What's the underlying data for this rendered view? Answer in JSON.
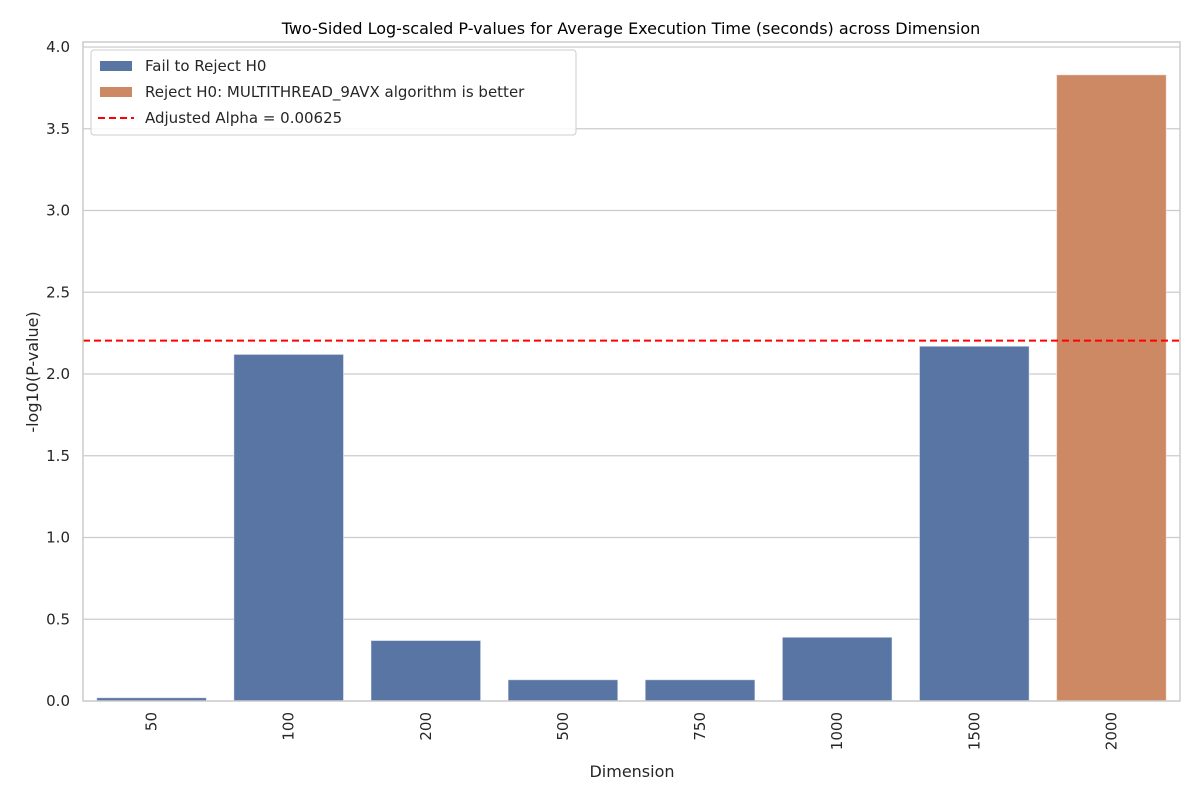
{
  "chart_data": {
    "type": "bar",
    "title": "Two-Sided Log-scaled P-values for Average Execution Time (seconds) across Dimension",
    "xlabel": "Dimension",
    "ylabel": "-log10(P-value)",
    "categories": [
      "50",
      "100",
      "200",
      "500",
      "750",
      "1000",
      "1500",
      "2000"
    ],
    "values": [
      0.02,
      2.12,
      0.37,
      0.13,
      0.13,
      0.39,
      2.17,
      3.83
    ],
    "groups": [
      "Fail to Reject H0",
      "Fail to Reject H0",
      "Fail to Reject H0",
      "Fail to Reject H0",
      "Fail to Reject H0",
      "Fail to Reject H0",
      "Fail to Reject H0",
      "Reject H0: MULTITHREAD_9AVX algorithm is better"
    ],
    "ylim": [
      0,
      4.0
    ],
    "yticks": [
      "0.0",
      "0.5",
      "1.0",
      "1.5",
      "2.0",
      "2.5",
      "3.0",
      "3.5",
      "4.0"
    ],
    "xtick_rotation": 90,
    "grid": "horizontal",
    "reference_line": {
      "label": "Adjusted Alpha = 0.00625",
      "value": 2.204,
      "style": "dashed",
      "color": "#e8000b"
    },
    "legend": {
      "position": "upper left",
      "entries": [
        {
          "label": "Fail to Reject H0",
          "color": "#5875a4",
          "kind": "patch"
        },
        {
          "label": "Reject H0: MULTITHREAD_9AVX algorithm is better",
          "color": "#cc8963",
          "kind": "patch"
        },
        {
          "label": "Adjusted Alpha = 0.00625",
          "color": "#ff0000",
          "kind": "dashed-line"
        }
      ]
    },
    "colors": {
      "fail": "#5875a4",
      "reject": "#cc8963",
      "alpha_line": "#ff0000",
      "grid": "#cccccc"
    }
  }
}
